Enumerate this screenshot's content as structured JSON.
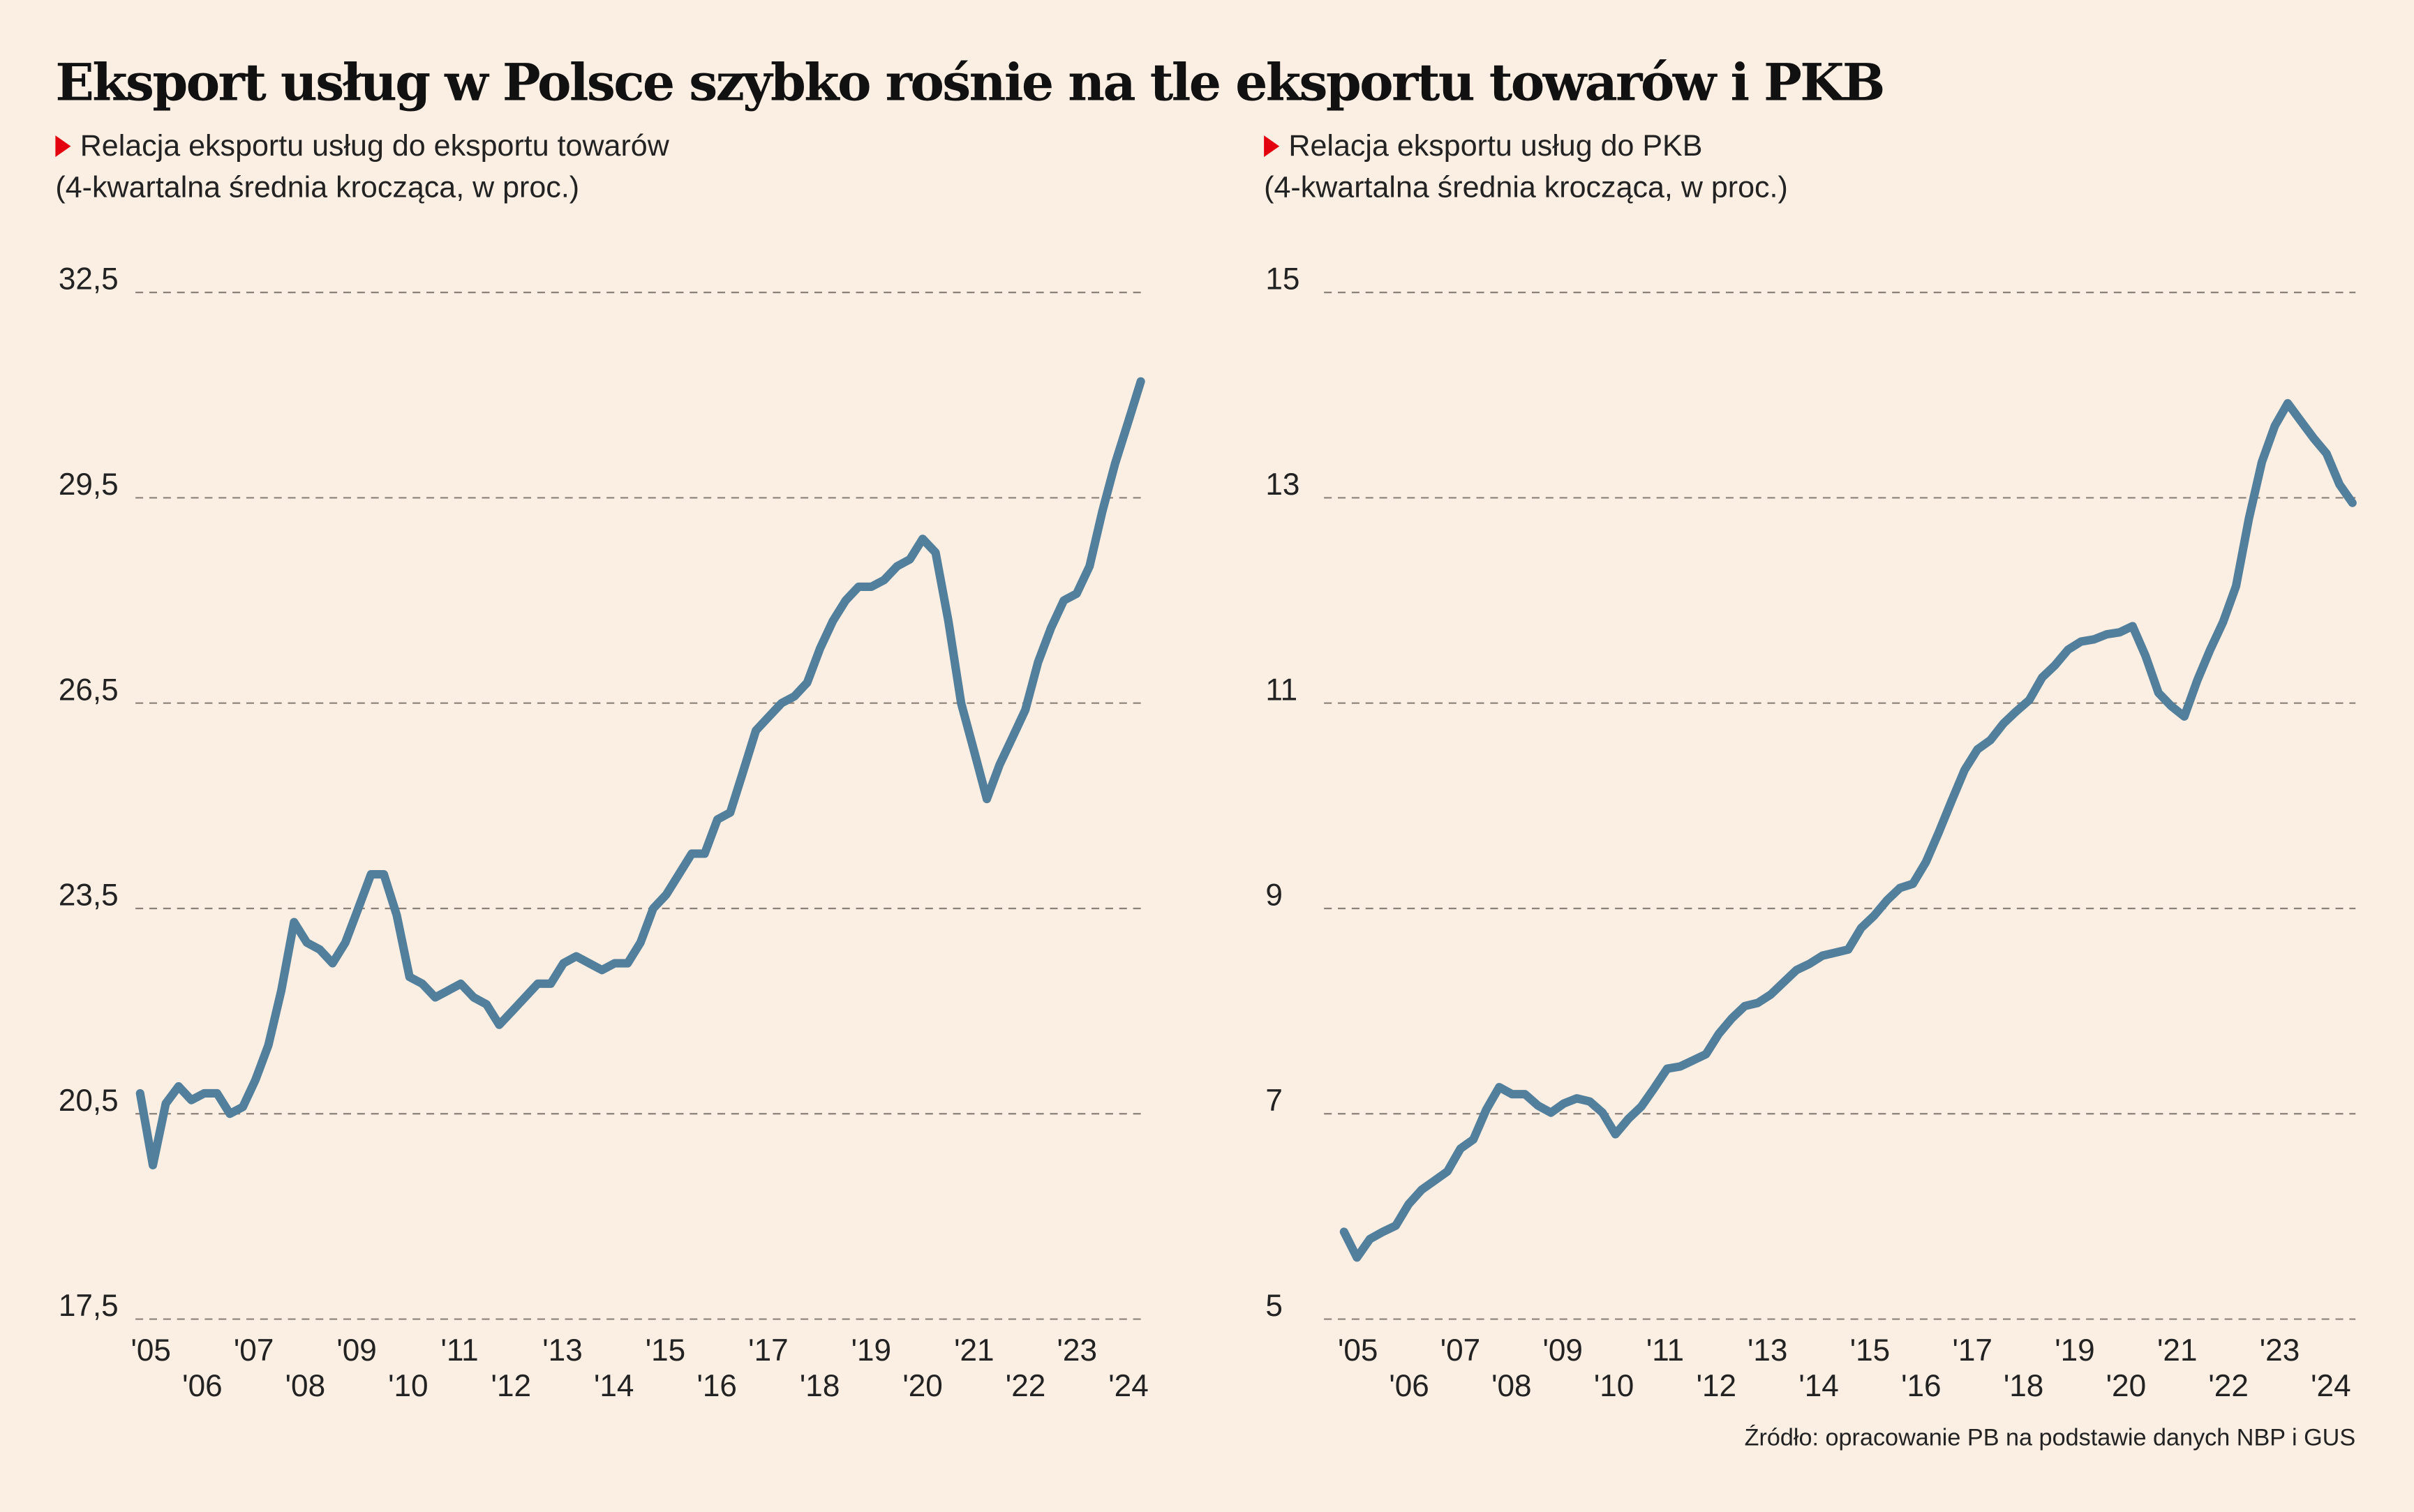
{
  "title": "Eksport usług w Polsce szybko rośnie na tle eksportu towarów i PKB",
  "source": "Źródło: opracowanie PB na podstawie danych NBP i GUS",
  "colors": {
    "background": "#fbeee2",
    "line": "#527f9c",
    "marker": "#e3000f",
    "grid": "#8a8178"
  },
  "chart_data": [
    {
      "type": "line",
      "title": "Relacja eksportu usług do eksportu towarów",
      "subtitle": "(4-kwartalna średnia krocząca, w proc.)",
      "x_start": 2005.0,
      "x_step": 0.25,
      "xlim": [
        2005,
        2024.5
      ],
      "ylim": [
        17.5,
        32.5
      ],
      "yticks": [
        17.5,
        20.5,
        23.5,
        26.5,
        29.5,
        32.5
      ],
      "ytick_labels": [
        "17,5",
        "20,5",
        "23,5",
        "26,5",
        "29,5",
        "32,5"
      ],
      "xtick_labels": [
        "'05",
        "'06",
        "'07",
        "'08",
        "'09",
        "'10",
        "'11",
        "'12",
        "'13",
        "'14",
        "'15",
        "'16",
        "'17",
        "'18",
        "'19",
        "'20",
        "'21",
        "'22",
        "'23",
        "'24"
      ],
      "grid": true,
      "values": [
        20.8,
        19.75,
        20.65,
        20.9,
        20.7,
        20.8,
        20.8,
        20.5,
        20.6,
        21.0,
        21.5,
        22.3,
        23.3,
        23.0,
        22.9,
        22.7,
        23.0,
        23.5,
        24.0,
        24.0,
        23.4,
        22.5,
        22.4,
        22.2,
        22.3,
        22.4,
        22.2,
        22.1,
        21.8,
        22.0,
        22.2,
        22.4,
        22.4,
        22.7,
        22.8,
        22.7,
        22.6,
        22.7,
        22.7,
        23.0,
        23.5,
        23.7,
        24.0,
        24.3,
        24.3,
        24.8,
        24.9,
        25.5,
        26.1,
        26.3,
        26.5,
        26.6,
        26.8,
        27.3,
        27.7,
        28.0,
        28.2,
        28.2,
        28.3,
        28.5,
        28.6,
        28.9,
        28.7,
        27.7,
        26.5,
        25.8,
        25.1,
        25.6,
        26.0,
        26.4,
        27.1,
        27.6,
        28.0,
        28.1,
        28.5,
        29.3,
        30.0,
        30.6,
        31.2
      ]
    },
    {
      "type": "line",
      "title": "Relacja eksportu usług do PKB",
      "subtitle": "(4-kwartalna średnia krocząca, w proc.)",
      "x_start": 2005.0,
      "x_step": 0.25,
      "xlim": [
        2005,
        2024.5
      ],
      "ylim": [
        5,
        15
      ],
      "yticks": [
        5,
        7,
        9,
        11,
        13,
        15
      ],
      "ytick_labels": [
        "5",
        "7",
        "9",
        "11",
        "13",
        "15"
      ],
      "xtick_labels": [
        "'05",
        "'06",
        "'07",
        "'08",
        "'09",
        "'10",
        "'11",
        "'12",
        "'13",
        "'14",
        "'15",
        "'16",
        "'17",
        "'18",
        "'19",
        "'20",
        "'21",
        "'22",
        "'23",
        "'24"
      ],
      "grid": true,
      "values": [
        5.85,
        5.6,
        5.78,
        5.85,
        5.91,
        6.12,
        6.26,
        6.35,
        6.44,
        6.66,
        6.75,
        7.04,
        7.26,
        7.19,
        7.19,
        7.08,
        7.01,
        7.1,
        7.15,
        7.12,
        7.01,
        6.8,
        6.95,
        7.07,
        7.25,
        7.44,
        7.46,
        7.52,
        7.58,
        7.78,
        7.93,
        8.05,
        8.08,
        8.16,
        8.28,
        8.4,
        8.46,
        8.54,
        8.57,
        8.6,
        8.81,
        8.93,
        9.08,
        9.2,
        9.24,
        9.45,
        9.74,
        10.05,
        10.35,
        10.55,
        10.64,
        10.8,
        10.92,
        11.03,
        11.25,
        11.37,
        11.52,
        11.6,
        11.62,
        11.67,
        11.69,
        11.75,
        11.46,
        11.1,
        10.97,
        10.87,
        11.22,
        11.52,
        11.79,
        12.14,
        12.8,
        13.35,
        13.7,
        13.92,
        13.75,
        13.58,
        13.43,
        13.13,
        12.95
      ]
    }
  ]
}
